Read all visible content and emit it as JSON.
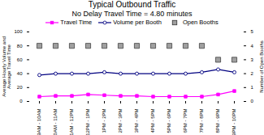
{
  "chart_data": {
    "type": "line",
    "title": "Typical Outbound Traffic",
    "subtitle": "No Delay Travel Time = 4.80 minutes",
    "ylabel": "Average Hourly Volume and\nAverage Travel Time",
    "y2label": "Number of Open Booths",
    "categories": [
      "9AM - 10AM",
      "10AM - 11AM",
      "11AM - 12PM",
      "12PM - 1PM",
      "1PM - 2PM",
      "2PM - 3PM",
      "3PM - 4PM",
      "4PM - 5PM",
      "5PM - 6PM",
      "6PM - 7PM",
      "7PM - 8PM",
      "8PM - 9PM",
      "9PM - 10PM"
    ],
    "series": [
      {
        "name": "Travel Time",
        "color": "#FF00FF",
        "marker": "square",
        "values": [
          7,
          8,
          8,
          10,
          9,
          8,
          8,
          7,
          7,
          7,
          7,
          10,
          15
        ]
      },
      {
        "name": "Volume per Booth",
        "color": "#000080",
        "marker": "circle",
        "values": [
          38,
          40,
          40,
          40,
          42,
          40,
          40,
          40,
          40,
          40,
          42,
          46,
          42
        ]
      },
      {
        "name": "Open Booths",
        "color": "#A0A0A0",
        "marker": "square",
        "type": "scatter",
        "axis": "y2",
        "values": [
          4,
          4,
          4,
          4,
          4,
          4,
          4,
          4,
          4,
          4,
          4,
          3,
          3
        ]
      }
    ],
    "ylim": [
      0,
      100
    ],
    "yticks": [
      0,
      20,
      40,
      60,
      80,
      100
    ],
    "y2lim": [
      0,
      5
    ],
    "y2ticks": [
      0,
      1,
      2,
      3,
      4,
      5
    ],
    "grid": false,
    "legend": "upper center"
  }
}
